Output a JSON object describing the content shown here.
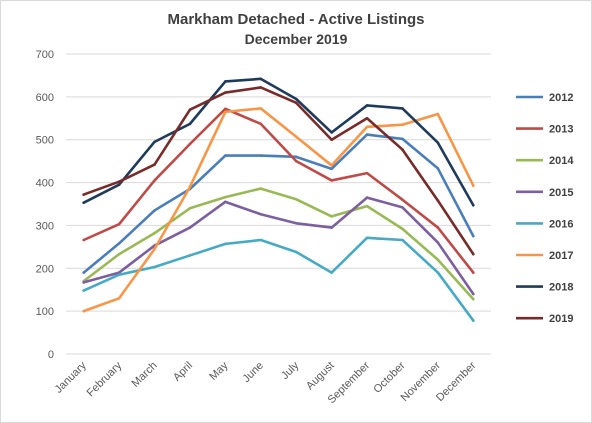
{
  "chart_data": {
    "type": "line",
    "title": "Markham Detached - Active Listings",
    "subtitle": "December 2019",
    "xlabel": "",
    "ylabel": "",
    "ylim": [
      0,
      700
    ],
    "yticks": [
      0,
      100,
      200,
      300,
      400,
      500,
      600,
      700
    ],
    "grid": true,
    "legend": "right",
    "categories": [
      "January",
      "February",
      "March",
      "April",
      "May",
      "June",
      "July",
      "August",
      "September",
      "October",
      "November",
      "December"
    ],
    "series": [
      {
        "name": "2012",
        "color": "#4a7ebb",
        "values": [
          190,
          258,
          335,
          385,
          463,
          463,
          460,
          432,
          512,
          502,
          433,
          275
        ]
      },
      {
        "name": "2013",
        "color": "#be4b48",
        "values": [
          266,
          303,
          405,
          490,
          572,
          537,
          450,
          405,
          422,
          360,
          295,
          190
        ]
      },
      {
        "name": "2014",
        "color": "#98b954",
        "values": [
          170,
          233,
          282,
          340,
          366,
          386,
          361,
          321,
          345,
          292,
          220,
          128
        ]
      },
      {
        "name": "2015",
        "color": "#7d5fa0",
        "values": [
          167,
          190,
          253,
          295,
          355,
          326,
          305,
          295,
          365,
          342,
          260,
          140
        ]
      },
      {
        "name": "2016",
        "color": "#46aac5",
        "values": [
          148,
          185,
          203,
          230,
          257,
          266,
          238,
          190,
          271,
          266,
          190,
          78
        ]
      },
      {
        "name": "2017",
        "color": "#f79646",
        "values": [
          100,
          130,
          245,
          390,
          565,
          573,
          507,
          440,
          530,
          535,
          560,
          393
        ]
      },
      {
        "name": "2018",
        "color": "#1f3b5c",
        "values": [
          353,
          395,
          495,
          537,
          636,
          642,
          595,
          517,
          580,
          573,
          493,
          347
        ]
      },
      {
        "name": "2019",
        "color": "#772c2a",
        "values": [
          372,
          402,
          442,
          570,
          610,
          622,
          586,
          500,
          550,
          477,
          358,
          233
        ]
      }
    ]
  }
}
